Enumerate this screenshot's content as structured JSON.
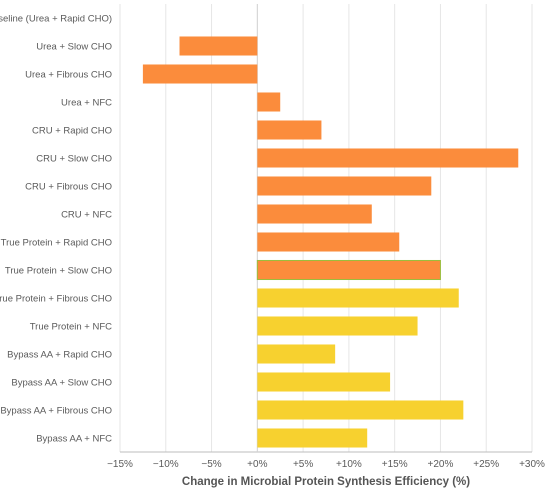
{
  "chart_data": {
    "type": "bar",
    "orientation": "horizontal",
    "categories": [
      "Baseline (Urea + Rapid CHO)",
      "Urea + Slow CHO",
      "Urea + Fibrous CHO",
      "Urea + NFC",
      "CRU + Rapid CHO",
      "CRU + Slow CHO",
      "CRU + Fibrous CHO",
      "CRU + NFC",
      "True Protein + Rapid CHO",
      "True Protein + Slow CHO",
      "True Protein + Fibrous CHO",
      "True Protein + NFC",
      "Bypass AA + Rapid CHO",
      "Bypass AA + Slow CHO",
      "Bypass AA + Fibrous CHO",
      "Bypass AA + NFC"
    ],
    "values": [
      0,
      -8.5,
      -12.5,
      2.5,
      7,
      28.5,
      19,
      12.5,
      15.5,
      20,
      22,
      17.5,
      8.5,
      14.5,
      22.5,
      12
    ],
    "bar_colors": [
      "#fb8c3c",
      "#fb8c3c",
      "#fb8c3c",
      "#fb8c3c",
      "#fb8c3c",
      "#fb8c3c",
      "#fb8c3c",
      "#fb8c3c",
      "#fb8c3c",
      "#fb8c3c",
      "#f7d12f",
      "#f7d12f",
      "#f7d12f",
      "#f7d12f",
      "#f7d12f",
      "#f7d12f"
    ],
    "xlabel": "Change in Microbial Protein Synthesis Efficiency (%)",
    "xlim": [
      -15,
      30
    ],
    "xticks": [
      -15,
      -10,
      -5,
      0,
      5,
      10,
      15,
      20,
      25,
      30
    ],
    "xtick_labels": [
      "−15%",
      "−10%",
      "−5%",
      "+0%",
      "+5%",
      "+10%",
      "+15%",
      "+20%",
      "+25%",
      "+30%"
    ],
    "grid": true
  }
}
